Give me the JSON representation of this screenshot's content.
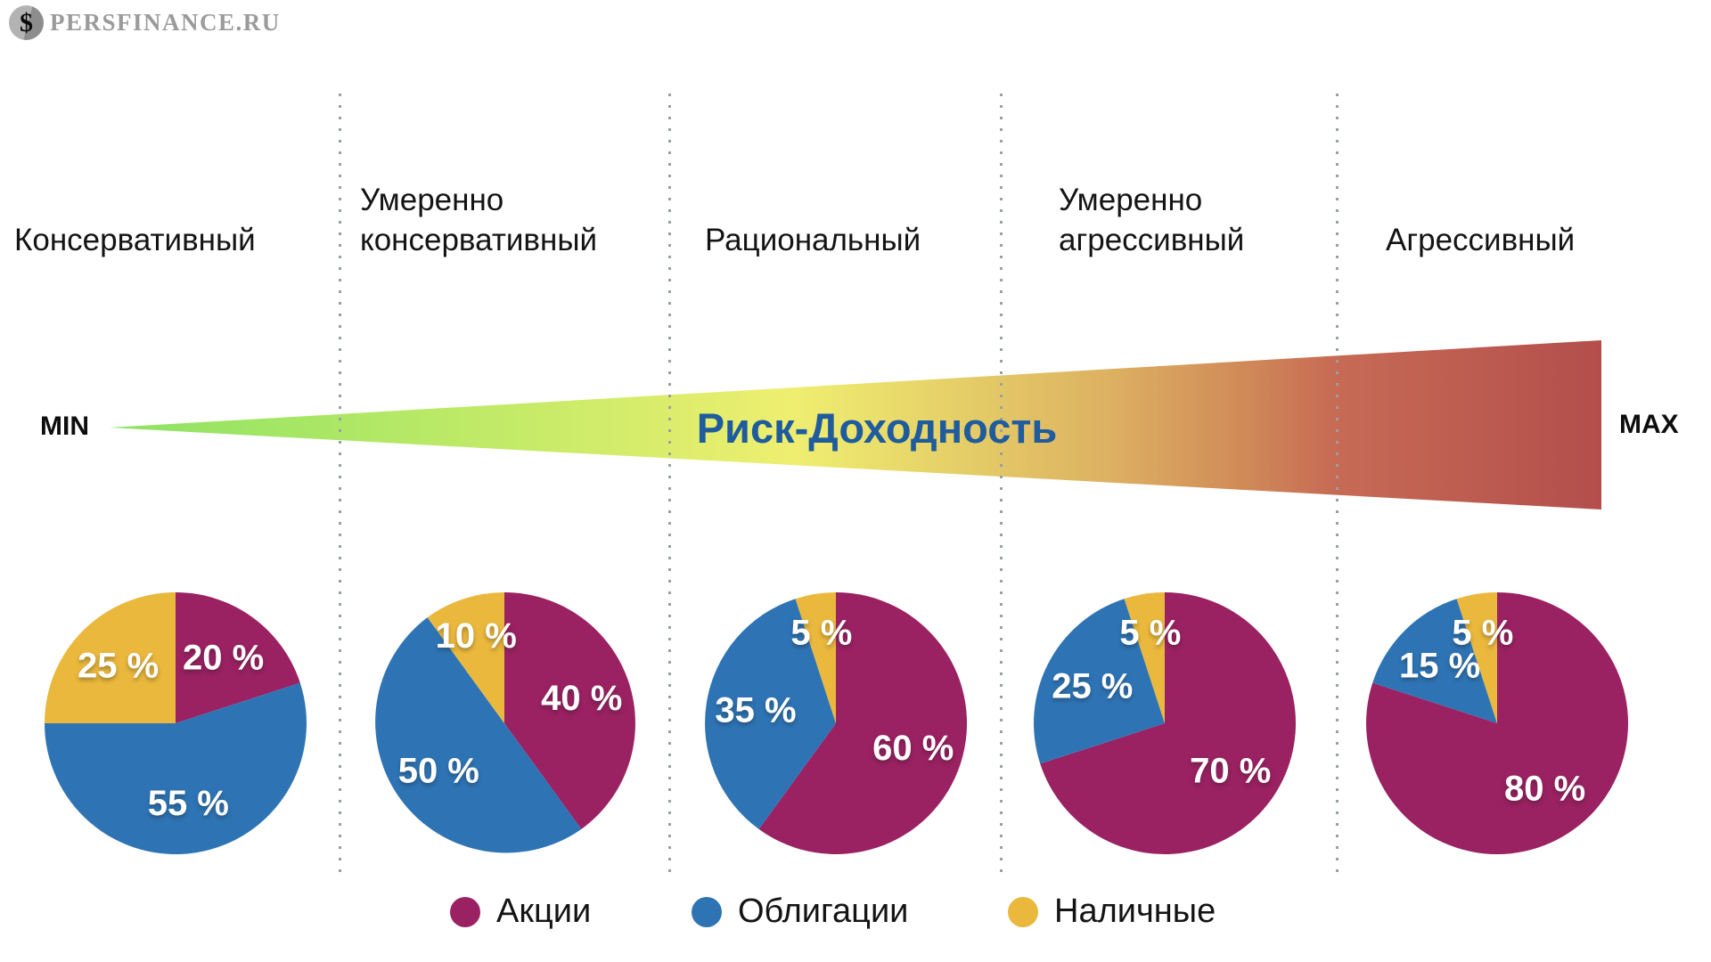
{
  "logo": {
    "icon": "$",
    "brand": "PERSFINANCE.RU"
  },
  "risk_axis": {
    "min_label": "MIN",
    "max_label": "MAX",
    "title": "Риск-Доходность",
    "title_color": "#1e5c9e",
    "gradient_colors": [
      "#8DE263",
      "#C6EB68",
      "#EFEE70",
      "#E4CB67",
      "#DDB162",
      "#D08A58",
      "#C76B55",
      "#B34E4C"
    ]
  },
  "legend": [
    {
      "label": "Акции",
      "color": "#9A2162"
    },
    {
      "label": "Облигации",
      "color": "#2E74B5"
    },
    {
      "label": "Наличные",
      "color": "#EAB83C"
    }
  ],
  "chart_data": {
    "type": "pie",
    "unit": "%",
    "series": [
      "Акции",
      "Облигации",
      "Наличные"
    ],
    "colors": [
      "#9A2162",
      "#2E74B5",
      "#EAB83C"
    ],
    "start_angle": "12-o-clock",
    "direction": "clockwise",
    "profiles": [
      {
        "label": "Консервативный",
        "lines": [
          "Консервативный"
        ],
        "values": [
          20,
          55,
          25
        ]
      },
      {
        "label": "Умеренно консервативный",
        "lines": [
          "Умеренно",
          "консервативный"
        ],
        "values": [
          40,
          50,
          10
        ]
      },
      {
        "label": "Рациональный",
        "lines": [
          "Рациональный"
        ],
        "values": [
          60,
          35,
          5
        ]
      },
      {
        "label": "Умеренно агрессивный",
        "lines": [
          "Умеренно",
          "агрессивный"
        ],
        "values": [
          70,
          25,
          5
        ]
      },
      {
        "label": "Агрессивный",
        "lines": [
          "Агрессивный"
        ],
        "values": [
          80,
          15,
          5
        ]
      }
    ]
  }
}
